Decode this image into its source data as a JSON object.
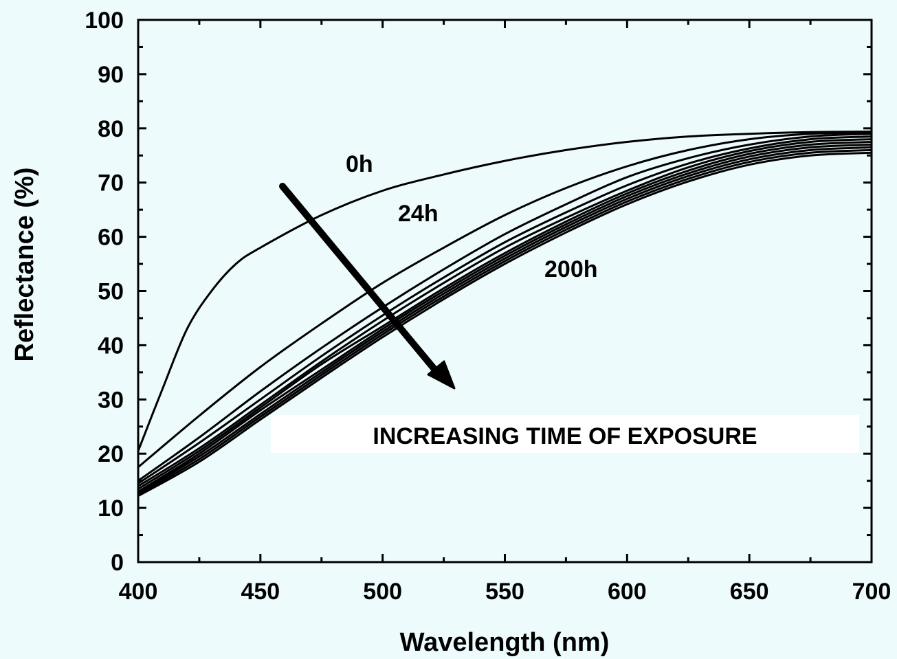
{
  "chart_data": {
    "type": "line",
    "title": "",
    "xlabel": "Wavelength (nm)",
    "ylabel": "Reflectance (%)",
    "xlim": [
      400,
      700
    ],
    "ylim": [
      0,
      100
    ],
    "x_ticks": [
      400,
      450,
      500,
      550,
      600,
      650,
      700
    ],
    "y_ticks": [
      0,
      10,
      20,
      30,
      40,
      50,
      60,
      70,
      80,
      90,
      100
    ],
    "grid": false,
    "legend": "none",
    "series": [
      {
        "x": [
          400,
          410,
          420,
          430,
          440,
          450,
          475,
          500,
          525,
          550,
          575,
          600,
          625,
          650,
          675,
          700
        ],
        "values": [
          20.5,
          32,
          43,
          50,
          55,
          58,
          64,
          68.5,
          71.5,
          74,
          76,
          77.5,
          78.5,
          79,
          79.3,
          79.4
        ]
      },
      {
        "x": [
          400,
          425,
          450,
          475,
          500,
          525,
          550,
          575,
          600,
          625,
          650,
          675,
          700
        ],
        "values": [
          17.5,
          27,
          36,
          44,
          51.5,
          58,
          64,
          69,
          73,
          76,
          78,
          79,
          79.2
        ]
      },
      {
        "x": [
          400,
          425,
          450,
          475,
          500,
          525,
          550,
          575,
          600,
          625,
          650,
          675,
          700
        ],
        "values": [
          15,
          23,
          31.5,
          39.5,
          47,
          54,
          60.5,
          66,
          71,
          74.5,
          77,
          78.5,
          79
        ]
      },
      {
        "x": [
          400,
          425,
          450,
          475,
          500,
          525,
          550,
          575,
          600,
          625,
          650,
          675,
          700
        ],
        "values": [
          14.5,
          22,
          30,
          38,
          45.5,
          52.5,
          59,
          64.5,
          69.5,
          73.5,
          76.3,
          78,
          78.5
        ]
      },
      {
        "x": [
          400,
          425,
          450,
          475,
          500,
          525,
          550,
          575,
          600,
          625,
          650,
          675,
          700
        ],
        "values": [
          14,
          21,
          29,
          37,
          44.5,
          51.5,
          58,
          63.5,
          68.5,
          72.8,
          75.8,
          77.5,
          78
        ]
      },
      {
        "x": [
          400,
          425,
          450,
          475,
          500,
          525,
          550,
          575,
          600,
          625,
          650,
          675,
          700
        ],
        "values": [
          13.5,
          20.5,
          28.5,
          36.5,
          43.5,
          50.5,
          57,
          62.8,
          68,
          72.2,
          75.3,
          77,
          77.5
        ]
      },
      {
        "x": [
          400,
          425,
          450,
          475,
          500,
          525,
          550,
          575,
          600,
          625,
          650,
          675,
          700
        ],
        "values": [
          13,
          20,
          28,
          35.5,
          43,
          50,
          56.5,
          62.3,
          67.5,
          71.7,
          74.8,
          76.5,
          77
        ]
      },
      {
        "x": [
          400,
          425,
          450,
          475,
          500,
          525,
          550,
          575,
          600,
          625,
          650,
          675,
          700
        ],
        "values": [
          12.8,
          19.5,
          27.3,
          35,
          42.5,
          49.5,
          56,
          61.8,
          67,
          71.2,
          74.3,
          76,
          76.5
        ]
      },
      {
        "x": [
          400,
          425,
          450,
          475,
          500,
          525,
          550,
          575,
          600,
          625,
          650,
          675,
          700
        ],
        "values": [
          12.5,
          19,
          26.8,
          34.5,
          42,
          49,
          55.5,
          61.3,
          66.5,
          70.7,
          73.8,
          75.5,
          76
        ]
      },
      {
        "x": [
          400,
          425,
          450,
          475,
          500,
          525,
          550,
          575,
          600,
          625,
          650,
          675,
          700
        ],
        "values": [
          12.2,
          18.5,
          26.3,
          34,
          41.5,
          48.5,
          55,
          60.8,
          66,
          70.2,
          73.3,
          75,
          75.5
        ]
      }
    ],
    "annotations": {
      "label_0h": "0h",
      "label_24h": "24h",
      "label_200h": "200h",
      "arrow_text": "INCREASING TIME OF EXPOSURE"
    }
  }
}
